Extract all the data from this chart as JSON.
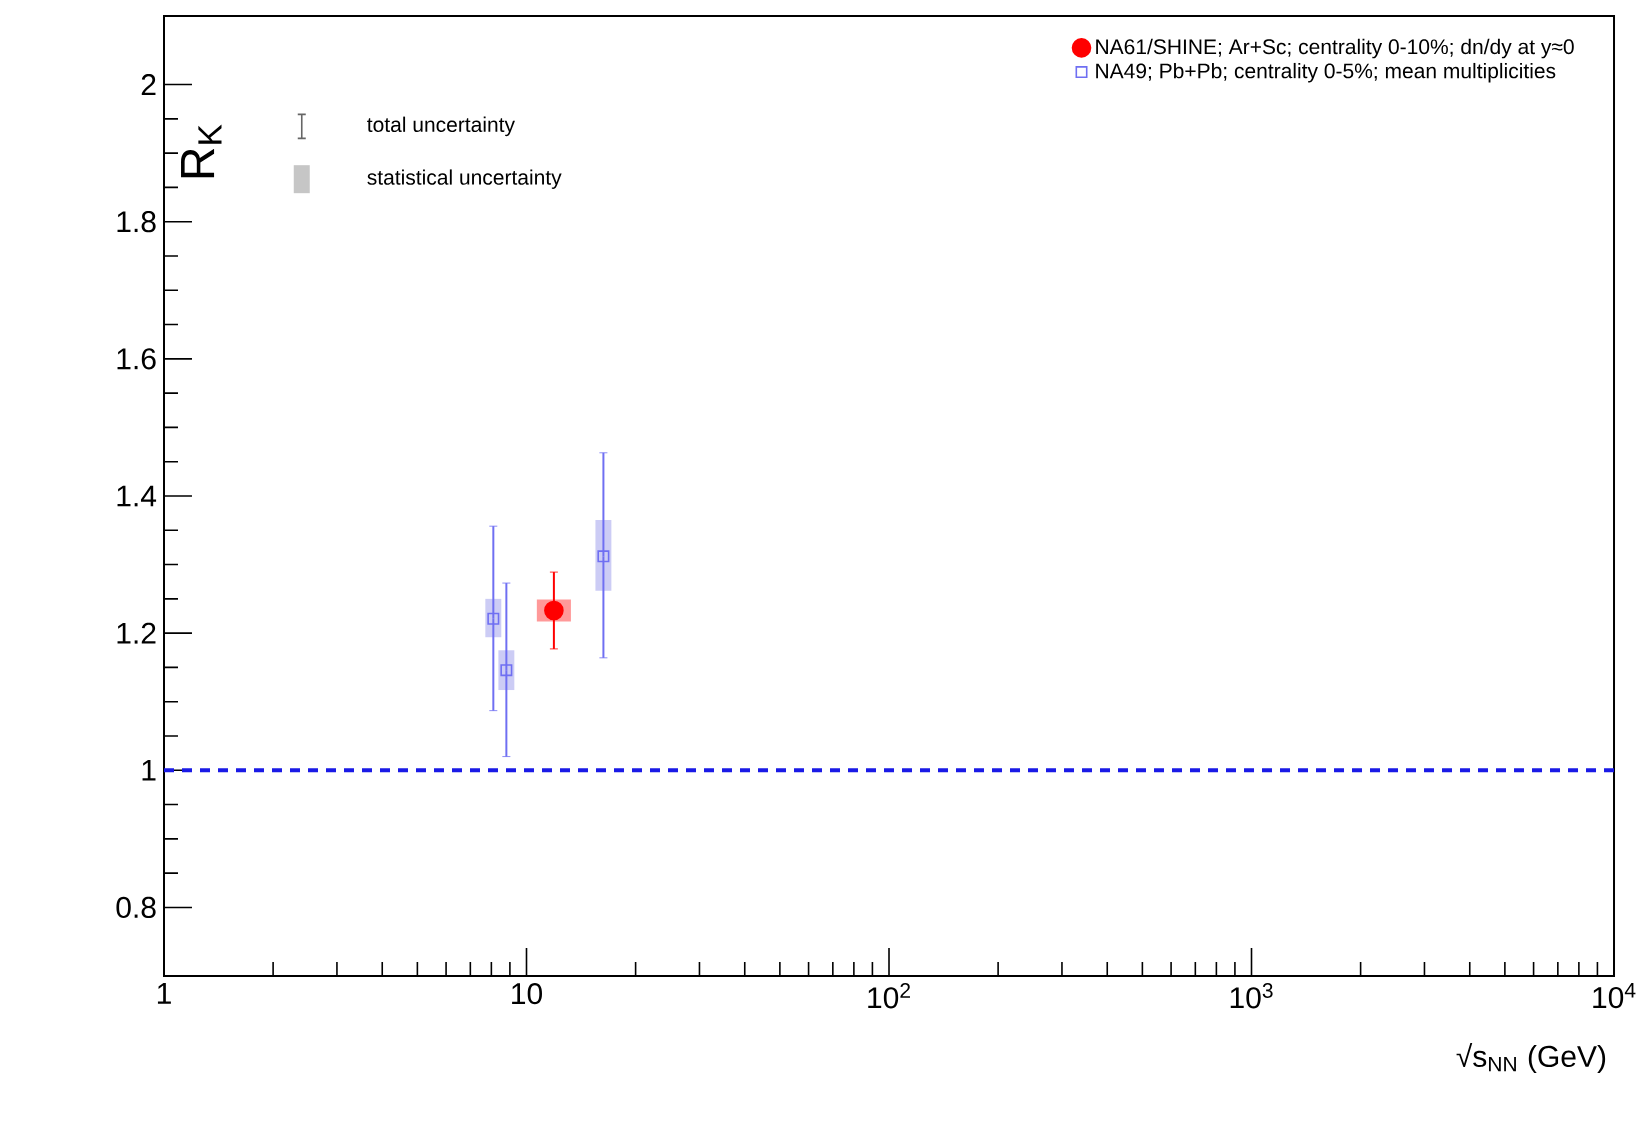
{
  "chart_data": {
    "type": "scatter",
    "xlabel": "√s$_{NN}$ (GeV)",
    "ylabel": "R$_{K}$",
    "log": "x",
    "xlim": [
      1,
      10000
    ],
    "ylim": [
      0.7,
      2.1
    ],
    "xticks": [
      {
        "value": 1,
        "label": "1"
      },
      {
        "value": 10,
        "label": "10"
      },
      {
        "value": 100,
        "label": "10$^{2}$"
      },
      {
        "value": 1000,
        "label": "10$^{3}$"
      },
      {
        "value": 10000,
        "label": "10$^{4}$"
      }
    ],
    "yticks": [
      0.8,
      1,
      1.2,
      1.4,
      1.6,
      1.8,
      2
    ],
    "legend": "top right",
    "annotations": [
      "total uncertainty",
      "statistical uncertainty"
    ],
    "ref_lines": [
      {
        "axis": "y",
        "value": 1,
        "color": "#1a1ae6",
        "line_style": "dashed"
      }
    ],
    "series": [
      {
        "type": "bar",
        "color": "#ff9999",
        "x": [
          11.9
        ],
        "base": [
          1.217
        ],
        "values": [
          0.032
        ]
      },
      {
        "type": "bar",
        "color": "#ccccf5",
        "x": [
          8.1,
          8.8,
          16.3
        ],
        "base": [
          1.194,
          1.117,
          1.262
        ],
        "values": [
          0.056,
          0.058,
          0.103
        ]
      },
      {
        "name": "NA61/SHINE; Ar+Sc; centrality 0-10%; dn/dy at y≈0",
        "color": "#ff0000",
        "marker": "circle",
        "x": [
          11.9
        ],
        "values": [
          1.233
        ],
        "errors": [
          [
            1.177,
            1.289
          ]
        ]
      },
      {
        "name": "NA49; Pb+Pb; centrality 0-5%; mean multiplicities",
        "color": "#6f6ff2",
        "marker": "square",
        "x": [
          8.1,
          8.8,
          16.3
        ],
        "values": [
          1.221,
          1.146,
          1.312
        ],
        "errors": [
          [
            1.087,
            1.356
          ],
          [
            1.02,
            1.273
          ],
          [
            1.164,
            1.463
          ]
        ]
      }
    ]
  }
}
